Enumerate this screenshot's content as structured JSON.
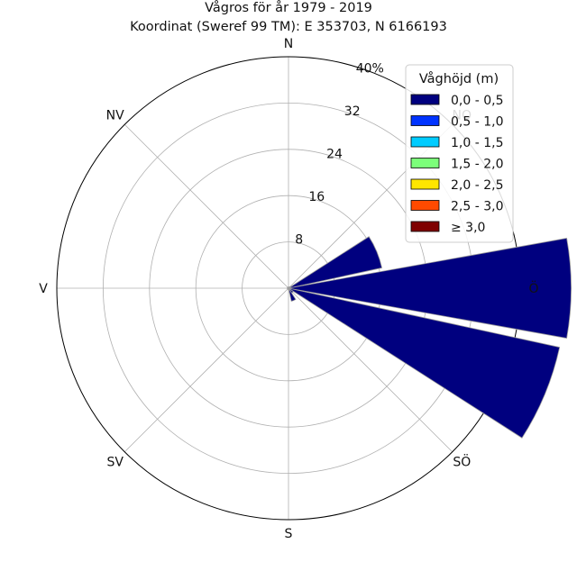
{
  "chart_data": {
    "type": "windrose",
    "title": "Vågros för år 1979 - 2019",
    "subtitle": "Koordinat (Sweref 99 TM): E 353703, N 6166193",
    "directions": [
      "N",
      "NO",
      "Ö",
      "SÖ",
      "S",
      "SV",
      "V",
      "NV"
    ],
    "sectors": [
      {
        "direction": "N",
        "angle_deg": 0,
        "value": 0.2
      },
      {
        "direction": "NNO",
        "angle_deg": 22.5,
        "value": 0.2
      },
      {
        "direction": "NO",
        "angle_deg": 45,
        "value": 0.3
      },
      {
        "direction": "ONO",
        "angle_deg": 67.5,
        "value": 16.5
      },
      {
        "direction": "Ö",
        "angle_deg": 90,
        "value": 48.8
      },
      {
        "direction": "OSO",
        "angle_deg": 112.5,
        "value": 47.9
      },
      {
        "direction": "SÖ",
        "angle_deg": 135,
        "value": 1.0
      },
      {
        "direction": "SSÖ",
        "angle_deg": 157.5,
        "value": 2.3
      },
      {
        "direction": "S",
        "angle_deg": 180,
        "value": 0.3
      },
      {
        "direction": "SSV",
        "angle_deg": 202.5,
        "value": 0.2
      },
      {
        "direction": "SV",
        "angle_deg": 225,
        "value": 0.2
      },
      {
        "direction": "VSV",
        "angle_deg": 247.5,
        "value": 0.2
      },
      {
        "direction": "V",
        "angle_deg": 270,
        "value": 0.2
      },
      {
        "direction": "VNV",
        "angle_deg": 292.5,
        "value": 0.2
      },
      {
        "direction": "NV",
        "angle_deg": 315,
        "value": 0.2
      },
      {
        "direction": "NNV",
        "angle_deg": 337.5,
        "value": 0.2
      }
    ],
    "rmax": 40,
    "ring_ticks": [
      8,
      16,
      24,
      32
    ],
    "ring_labels": [
      "8",
      "16",
      "24",
      "32",
      "40%"
    ],
    "grid": true,
    "legend": {
      "title": "Våghöjd (m)",
      "placement": "top-right",
      "entries": [
        {
          "label": "0,0 - 0,5",
          "color": "#00007f"
        },
        {
          "label": "0,5 - 1,0",
          "color": "#0033ff"
        },
        {
          "label": "1,0 - 1,5",
          "color": "#00ccff"
        },
        {
          "label": "1,5 - 2,0",
          "color": "#7cff7a"
        },
        {
          "label": "2,0 - 2,5",
          "color": "#ffe600"
        },
        {
          "label": "2,5 - 3,0",
          "color": "#ff4a00"
        },
        {
          "label": "≥ 3,0",
          "color": "#7f0000"
        }
      ]
    },
    "bar_color": "#00007f"
  }
}
